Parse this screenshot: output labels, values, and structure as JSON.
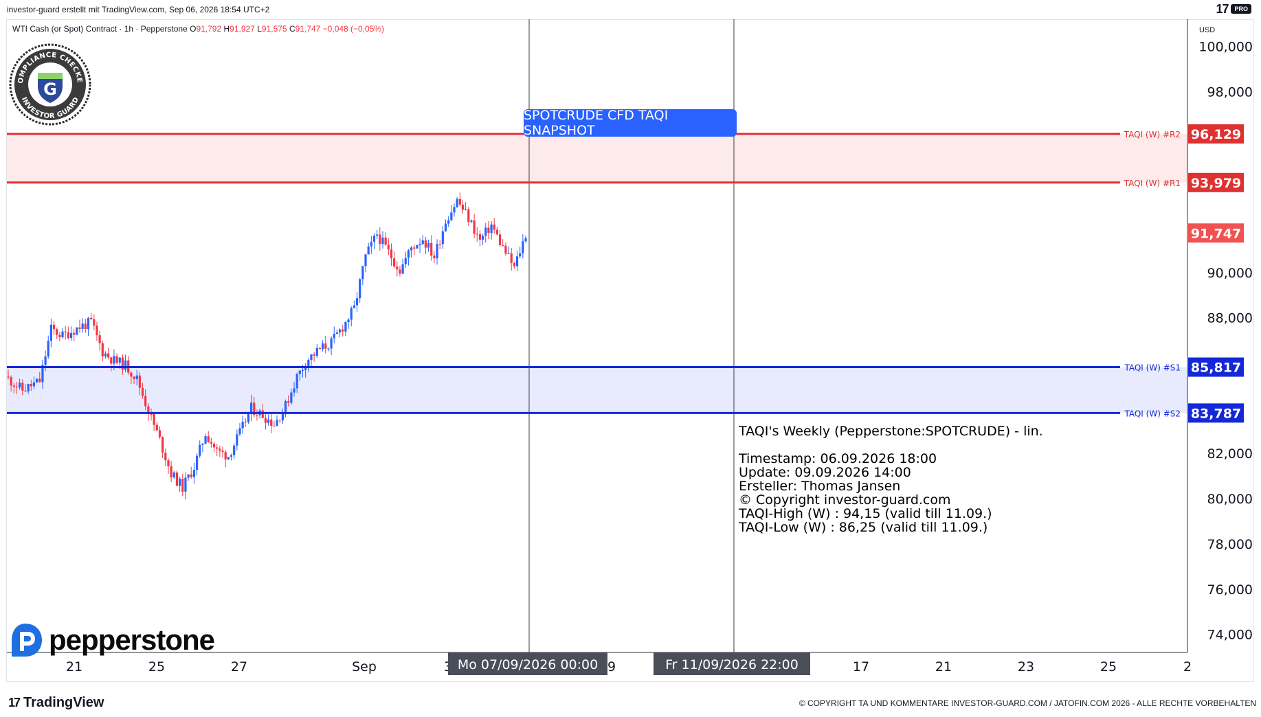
{
  "header": {
    "caption": "investor-guard erstellt mit TradingView.com, Sep 06, 2026 18:54 UTC+2",
    "brand_mark": "17",
    "brand_badge": "PRO"
  },
  "legend": {
    "symbol": "WTI Cash (or Spot) Contract · 1h · Pepperstone",
    "o_label": "O",
    "o_value": "91,792",
    "h_label": "H",
    "h_value": "91,927",
    "l_label": "L",
    "l_value": "91,575",
    "c_label": "C",
    "c_value": "91,747",
    "change": "−0,048 (−0,05%)"
  },
  "price_scale": {
    "currency": "USD"
  },
  "seal": {
    "top_text": "COMPLIANCE CHECKED",
    "bottom_text": "INVESTOR GUARD",
    "letter": "G"
  },
  "snapshot_label": "SPOTCRUDE CFD TAQI SNAPSHOT",
  "infobox": {
    "title": "TAQI's Weekly (Pepperstone:SPOTCRUDE) - lin.",
    "timestamp": "Timestamp: 06.09.2026 18:00",
    "update": "Update: 09.09.2026 14:00",
    "author": "Ersteller: Thomas Jansen",
    "copyright": "© Copyright investor-guard.com",
    "taqi_high": "TAQI-High (W) : 94,15 (valid till 11.09.)",
    "taqi_low": "TAQI-Low (W) : 86,25 (valid till 11.09.)"
  },
  "time_badges": {
    "left": "Mo 07/09/2026    00:00",
    "right": "Fr 11/09/2026    22:00"
  },
  "footer": {
    "tradingview": "TradingView",
    "tv_mark": "17",
    "copyright": "© COPYRIGHT TA UND KOMMENTARE INVESTOR-GUARD.COM / JATOFIN.COM 2026 - ALLE RECHTE VORBEHALTEN"
  },
  "watermark": {
    "brand": "pepperstone"
  },
  "colors": {
    "up": "#2962ff",
    "down": "#f23645",
    "resistance": "#e03131",
    "support": "#1428d8",
    "resistance_zone": "#fdeaea",
    "support_zone": "#e8ebfd",
    "badge_blue": "#2962ff",
    "time_badge": "#4a4e59"
  },
  "chart_data": {
    "type": "candlestick",
    "title": "",
    "x_ticks": [
      "21",
      "25",
      "27",
      "Sep",
      "3",
      "9",
      "17",
      "21",
      "23",
      "25",
      "2"
    ],
    "y_ticks": [
      "100,000",
      "98,000",
      "90,000",
      "88,000",
      "82,000",
      "80,000",
      "78,000",
      "76,000",
      "74,000"
    ],
    "ylim": [
      73.2,
      101.2
    ],
    "levels": [
      {
        "name": "TAQI (W) #R2",
        "value": "96,129",
        "y": 96.129,
        "kind": "resistance"
      },
      {
        "name": "TAQI (W) #R1",
        "value": "93,979",
        "y": 93.979,
        "kind": "resistance"
      },
      {
        "name": "TAQI (W) #S1",
        "value": "85,817",
        "y": 85.817,
        "kind": "support"
      },
      {
        "name": "TAQI (W) #S2",
        "value": "83,787",
        "y": 83.787,
        "kind": "support"
      }
    ],
    "last_price": {
      "value": "91,747",
      "y": 91.747
    },
    "path_points": [
      [
        0,
        85.4
      ],
      [
        6,
        84.8
      ],
      [
        12,
        85.2
      ],
      [
        16,
        87.5
      ],
      [
        20,
        87.2
      ],
      [
        26,
        87.6
      ],
      [
        30,
        87.8
      ],
      [
        34,
        86.5
      ],
      [
        38,
        86.1
      ],
      [
        42,
        85.9
      ],
      [
        46,
        85.3
      ],
      [
        50,
        83.9
      ],
      [
        54,
        82.6
      ],
      [
        58,
        81.1
      ],
      [
        62,
        80.5
      ],
      [
        66,
        81.4
      ],
      [
        70,
        82.9
      ],
      [
        74,
        82.1
      ],
      [
        78,
        81.9
      ],
      [
        82,
        82.9
      ],
      [
        86,
        84.0
      ],
      [
        90,
        83.7
      ],
      [
        94,
        83.3
      ],
      [
        98,
        84.1
      ],
      [
        102,
        85.4
      ],
      [
        106,
        86.2
      ],
      [
        110,
        86.6
      ],
      [
        114,
        86.9
      ],
      [
        118,
        87.6
      ],
      [
        122,
        88.4
      ],
      [
        126,
        90.7
      ],
      [
        130,
        91.7
      ],
      [
        134,
        90.9
      ],
      [
        138,
        90.1
      ],
      [
        142,
        91.1
      ],
      [
        146,
        91.5
      ],
      [
        150,
        90.7
      ],
      [
        154,
        92.3
      ],
      [
        158,
        93.2
      ],
      [
        162,
        92.4
      ],
      [
        166,
        91.4
      ],
      [
        170,
        92.1
      ],
      [
        174,
        91.1
      ],
      [
        178,
        90.2
      ],
      [
        182,
        91.7
      ]
    ],
    "n_candles": 182,
    "vertical_markers": [
      "Mo 07/09/2026 00:00",
      "Fr 11/09/2026 22:00"
    ]
  }
}
